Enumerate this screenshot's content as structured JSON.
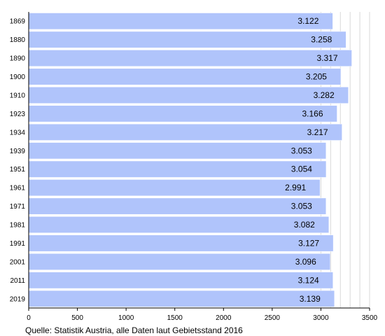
{
  "chart_data": {
    "type": "bar",
    "orientation": "horizontal",
    "categories": [
      "1869",
      "1880",
      "1890",
      "1900",
      "1910",
      "1923",
      "1934",
      "1939",
      "1951",
      "1961",
      "1971",
      "1981",
      "1991",
      "2001",
      "2011",
      "2019"
    ],
    "values": [
      3122,
      3258,
      3317,
      3205,
      3282,
      3166,
      3217,
      3053,
      3054,
      2991,
      3053,
      3082,
      3127,
      3096,
      3124,
      3139
    ],
    "value_labels": [
      "3.122",
      "3.258",
      "3.317",
      "3.205",
      "3.282",
      "3.166",
      "3.217",
      "3.053",
      "3.054",
      "2.991",
      "3.053",
      "3.082",
      "3.127",
      "3.096",
      "3.124",
      "3.139"
    ],
    "x_ticks": [
      0,
      500,
      1000,
      1500,
      2000,
      2500,
      3000,
      3500
    ],
    "xlim": [
      0,
      3500
    ],
    "bar_color": "#b0c4fb",
    "grid": true
  },
  "source_note": "Quelle: Statistik Austria, alle Daten laut Gebietsstand 2016"
}
